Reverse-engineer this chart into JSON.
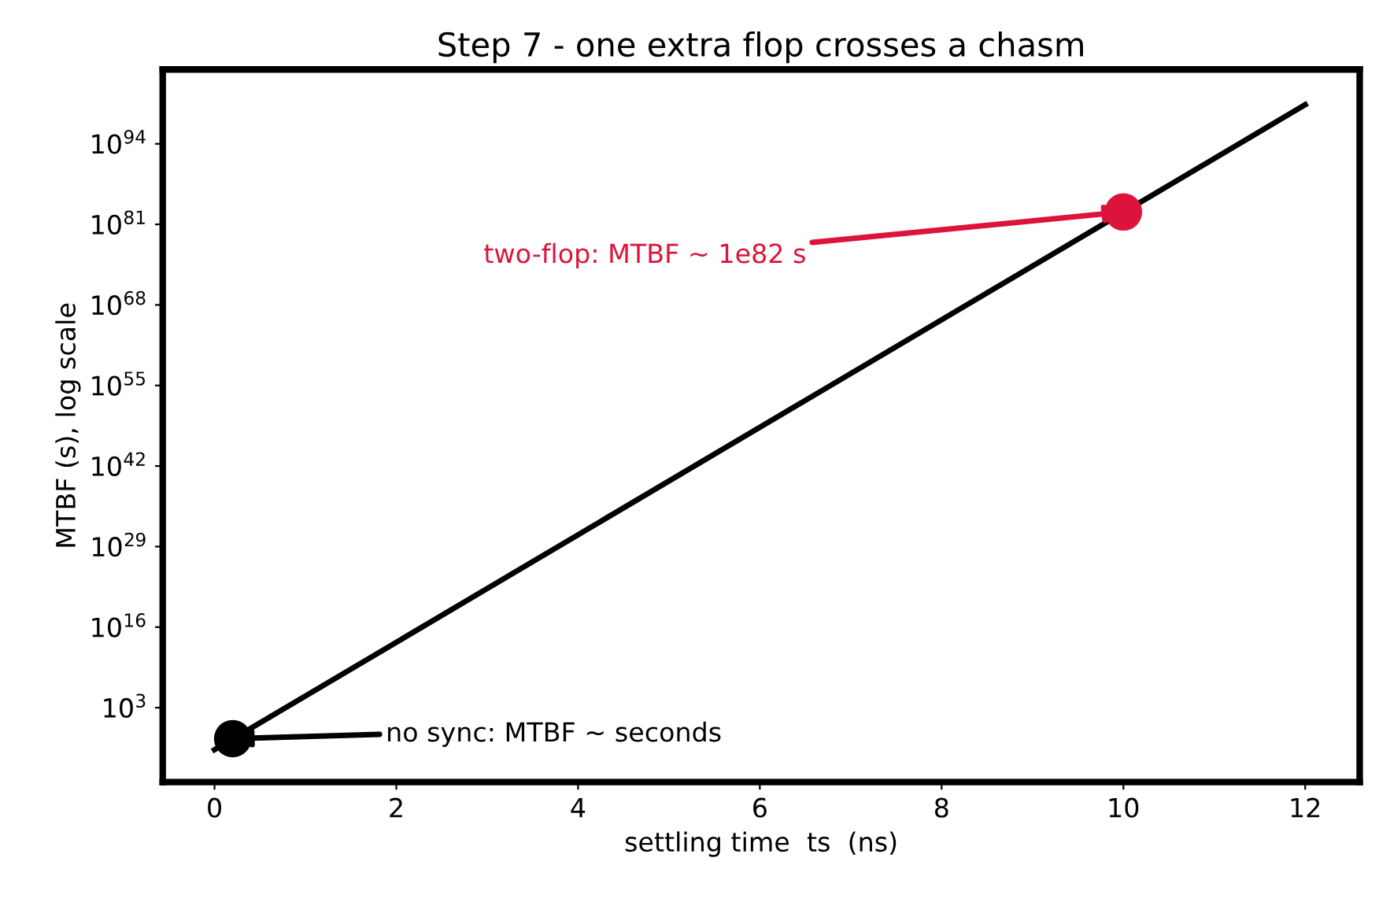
{
  "chart_data": {
    "type": "line",
    "title": "Step 7 - one extra flop crosses a chasm",
    "xlabel": "settling time  ts  (ns)",
    "ylabel": "MTBF (s), log scale",
    "log": "y",
    "grid": false,
    "series": [
      {
        "color": "#000000",
        "x": [
          0,
          12
        ],
        "values": [
          0.00016,
          2e+100
        ]
      },
      {
        "type": "scatter",
        "color": "#000000",
        "x": [
          0.2
        ],
        "values": [
          0.01
        ]
      },
      {
        "type": "scatter",
        "color": "#dc143c",
        "x": [
          10
        ],
        "values": [
          1e+83
        ]
      }
    ],
    "annotations": [
      {
        "text": "no sync: MTBF ~ seconds",
        "x": 0.2,
        "y": 0.01
      },
      {
        "text": "two-flop: MTBF ~ 1e82 s",
        "x": 10,
        "y": 1e+83
      }
    ],
    "xlim": [
      -0.57,
      12.6
    ],
    "ylim": [
      1e-09,
      1e+106
    ],
    "xticks": [
      0,
      2,
      4,
      6,
      8,
      10,
      12
    ],
    "yticks": [
      {
        "value": 1000.0,
        "label": "10$^{3}$"
      },
      {
        "value": 1e+16,
        "label": "10$^{16}$"
      },
      {
        "value": 1e+29,
        "label": "10$^{29}$"
      },
      {
        "value": 1e+42,
        "label": "10$^{42}$"
      },
      {
        "value": 1e+55,
        "label": "10$^{55}$"
      },
      {
        "value": 1e+68,
        "label": "10$^{68}$"
      },
      {
        "value": 1e+81,
        "label": "10$^{81}$"
      },
      {
        "value": 1e+94,
        "label": "10$^{94}$"
      }
    ]
  }
}
